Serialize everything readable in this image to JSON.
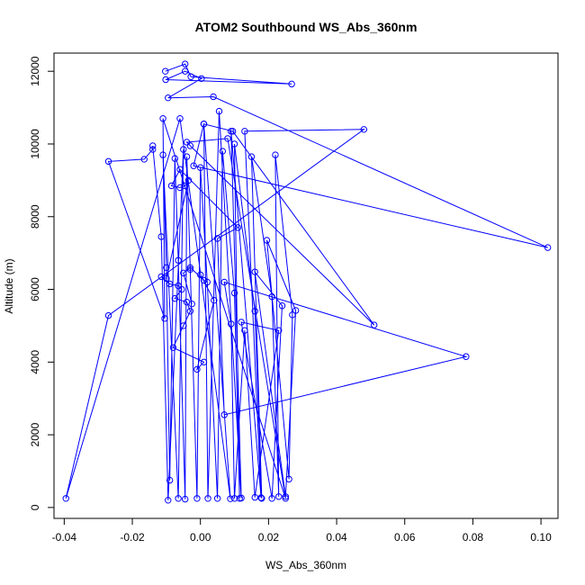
{
  "chart_data": {
    "type": "line",
    "title": "ATOM2 Southbound WS_Abs_360nm",
    "xlabel": "WS_Abs_360nm",
    "ylabel": "Altitude (m)",
    "xlim": [
      -0.043,
      0.105
    ],
    "ylim": [
      -300,
      12500
    ],
    "xticks": [
      -0.04,
      -0.02,
      0.0,
      0.02,
      0.04,
      0.06,
      0.08,
      0.1
    ],
    "xtick_labels": [
      "-0.04",
      "-0.02",
      "0.00",
      "0.02",
      "0.04",
      "0.06",
      "0.08",
      "0.10"
    ],
    "yticks": [
      0,
      2000,
      4000,
      6000,
      8000,
      10000,
      12000
    ],
    "ytick_labels": [
      "0",
      "2000",
      "4000",
      "6000",
      "8000",
      "10000",
      "12000"
    ],
    "grid": false,
    "series": [
      {
        "color": "#0000ff",
        "marker": "open-circle",
        "points": [
          {
            "x": -0.0103,
            "y": 12000
          },
          {
            "x": -0.0045,
            "y": 12200
          },
          {
            "x": -0.0028,
            "y": 11850
          },
          {
            "x": 0.0268,
            "y": 11650
          },
          {
            "x": -0.0102,
            "y": 11770
          },
          {
            "x": -0.0045,
            "y": 12000
          },
          {
            "x": 0.0003,
            "y": 11800
          },
          {
            "x": -0.0095,
            "y": 11270
          },
          {
            "x": 0.0038,
            "y": 11300
          },
          {
            "x": 0.102,
            "y": 7150
          },
          {
            "x": -0.002,
            "y": 9400
          },
          {
            "x": 0.001,
            "y": 10550
          },
          {
            "x": 0.0022,
            "y": 250
          },
          {
            "x": 0.0055,
            "y": 10900
          },
          {
            "x": 0.012,
            "y": 260
          },
          {
            "x": 0.009,
            "y": 10350
          },
          {
            "x": 0.0178,
            "y": 270
          },
          {
            "x": 0.013,
            "y": 10350
          },
          {
            "x": 0.048,
            "y": 10400
          },
          {
            "x": -0.027,
            "y": 5280
          },
          {
            "x": -0.0395,
            "y": 250
          },
          {
            "x": -0.006,
            "y": 10700
          },
          {
            "x": 0.0088,
            "y": 240
          },
          {
            "x": 0.001,
            "y": 10550
          },
          {
            "x": 0.0095,
            "y": 10350
          },
          {
            "x": 0.051,
            "y": 5020
          },
          {
            "x": -0.003,
            "y": 9950
          },
          {
            "x": -0.004,
            "y": 10050
          },
          {
            "x": 0.008,
            "y": 10150
          },
          {
            "x": 0.025,
            "y": 250
          },
          {
            "x": -0.011,
            "y": 10700
          },
          {
            "x": -0.0105,
            "y": 5200
          },
          {
            "x": -0.027,
            "y": 9520
          },
          {
            "x": -0.0165,
            "y": 9580
          },
          {
            "x": -0.014,
            "y": 9850
          },
          {
            "x": -0.014,
            "y": 9950
          },
          {
            "x": -0.0115,
            "y": 7450
          },
          {
            "x": -0.0095,
            "y": 200
          },
          {
            "x": -0.005,
            "y": 9850
          },
          {
            "x": -0.0065,
            "y": 250
          },
          {
            "x": -0.011,
            "y": 9700
          },
          {
            "x": -0.01,
            "y": 6600
          },
          {
            "x": -0.009,
            "y": 750
          },
          {
            "x": -0.0075,
            "y": 9600
          },
          {
            "x": -0.0065,
            "y": 6800
          },
          {
            "x": -0.0045,
            "y": 230
          },
          {
            "x": -0.004,
            "y": 9650
          },
          {
            "x": -0.003,
            "y": 6550
          },
          {
            "x": -0.001,
            "y": 250
          },
          {
            "x": 0.0,
            "y": 9350
          },
          {
            "x": 0.002,
            "y": 6200
          },
          {
            "x": 0.005,
            "y": 250
          },
          {
            "x": 0.0065,
            "y": 9800
          },
          {
            "x": 0.01,
            "y": 5900
          },
          {
            "x": 0.0115,
            "y": 250
          },
          {
            "x": 0.01,
            "y": 10000
          },
          {
            "x": 0.016,
            "y": 5400
          },
          {
            "x": 0.018,
            "y": 250
          },
          {
            "x": 0.015,
            "y": 9650
          },
          {
            "x": 0.021,
            "y": 5800
          },
          {
            "x": 0.023,
            "y": 300
          },
          {
            "x": 0.022,
            "y": 9700
          },
          {
            "x": 0.027,
            "y": 5300
          },
          {
            "x": 0.026,
            "y": 780
          },
          {
            "x": 0.0195,
            "y": 7350
          },
          {
            "x": 0.028,
            "y": 5420
          },
          {
            "x": 0.025,
            "y": 300
          },
          {
            "x": 0.016,
            "y": 6480
          },
          {
            "x": 0.024,
            "y": 5550
          },
          {
            "x": 0.021,
            "y": 250
          },
          {
            "x": 0.012,
            "y": 5100
          },
          {
            "x": 0.023,
            "y": 4870
          },
          {
            "x": 0.016,
            "y": 280
          },
          {
            "x": 0.013,
            "y": 4870
          },
          {
            "x": 0.01,
            "y": 250
          },
          {
            "x": 0.009,
            "y": 5050
          },
          {
            "x": 0.007,
            "y": 6200
          },
          {
            "x": 0.078,
            "y": 4150
          },
          {
            "x": 0.007,
            "y": 2550
          },
          {
            "x": 0.005,
            "y": 7400
          },
          {
            "x": 0.011,
            "y": 7700
          },
          {
            "x": -0.006,
            "y": 9300
          },
          {
            "x": -0.0085,
            "y": 8850
          },
          {
            "x": -0.006,
            "y": 8800
          },
          {
            "x": -0.0045,
            "y": 8850
          },
          {
            "x": -0.0035,
            "y": 9000
          },
          {
            "x": -0.01,
            "y": 6300
          },
          {
            "x": -0.0115,
            "y": 6350
          },
          {
            "x": -0.009,
            "y": 6150
          },
          {
            "x": -0.0065,
            "y": 6100
          },
          {
            "x": -0.0055,
            "y": 6000
          },
          {
            "x": -0.0075,
            "y": 5750
          },
          {
            "x": -0.004,
            "y": 5650
          },
          {
            "x": -0.003,
            "y": 5400
          },
          {
            "x": -0.005,
            "y": 5000
          },
          {
            "x": -0.008,
            "y": 4400
          },
          {
            "x": 0.001,
            "y": 4000
          },
          {
            "x": -0.001,
            "y": 3800
          },
          {
            "x": 0.004,
            "y": 5700
          },
          {
            "x": 0.0,
            "y": 6400
          },
          {
            "x": 0.001,
            "y": 6250
          },
          {
            "x": -0.003,
            "y": 6600
          },
          {
            "x": -0.005,
            "y": 6450
          },
          {
            "x": -0.0025,
            "y": 5600
          }
        ]
      }
    ]
  }
}
